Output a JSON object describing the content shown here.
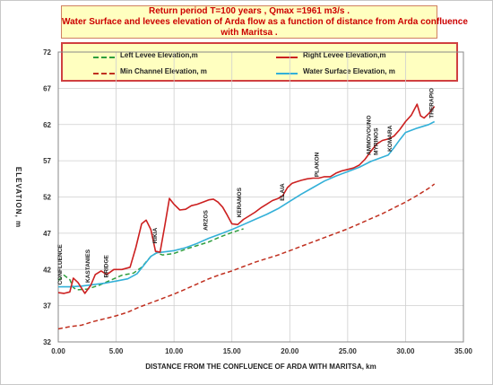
{
  "title_lines": [
    "Return period  T=100 years , Qmax =1961    m3/s .",
    "Water  Surface and levees  elevation  of  Arda flow  as a function of  distance  from  Arda confluence",
    "with Maritsa   ."
  ],
  "colors": {
    "left_levee": "#2e9e3e",
    "right_levee": "#cc2020",
    "min_channel": "#c03020",
    "water": "#33b0d8",
    "title_text": "#cc0000"
  },
  "chart_data": {
    "type": "line",
    "title": "Return period  T=100 years , Qmax =1961    m3/s . Water  Surface and levees  elevation  of  Arda flow  as a function of  distance  from  Arda confluence with Maritsa   .",
    "xlabel": "DISTANCE  FROM THE CONFLUENCE OF ARDA WITH MARITSA, km",
    "ylabel": "ELEVATION, m",
    "xlim": [
      0,
      35
    ],
    "ylim": [
      32,
      72
    ],
    "x_ticks": [
      "0.00",
      "5.00",
      "10.00",
      "15.00",
      "20.00",
      "25.00",
      "30.00",
      "35.00"
    ],
    "y_ticks": [
      "32",
      "37",
      "42",
      "47",
      "52",
      "57",
      "62",
      "67",
      "72"
    ],
    "grid": true,
    "legend_placement": "top",
    "series": [
      {
        "name": "Left Levee  Elevation,m",
        "style": "dashed",
        "color": "#2e9e3e",
        "x": [
          0.0,
          0.5,
          1.0,
          1.3,
          1.6,
          2.5,
          3.5,
          4.5,
          5.5,
          6.5,
          7.2,
          8.0,
          8.5,
          9.0,
          10.0,
          11.0,
          12.0,
          13.0,
          14.0,
          15.0,
          16.0
        ],
        "y": [
          40.5,
          41.2,
          40.6,
          39.5,
          39.2,
          39.3,
          39.8,
          40.5,
          41.2,
          41.5,
          42.3,
          43.8,
          44.3,
          44.0,
          44.2,
          44.8,
          45.3,
          45.8,
          46.5,
          47.1,
          47.6
        ]
      },
      {
        "name": "Right  Levee  Elevation,m",
        "style": "solid",
        "color": "#cc2020",
        "x": [
          0.0,
          0.5,
          1.0,
          1.3,
          1.7,
          2.3,
          2.8,
          3.2,
          3.7,
          4.2,
          4.8,
          5.5,
          6.2,
          6.7,
          7.2,
          7.6,
          8.0,
          8.4,
          8.8,
          9.2,
          9.6,
          10.0,
          10.5,
          11.0,
          11.5,
          12.0,
          12.5,
          13.0,
          13.4,
          13.8,
          14.2,
          14.6,
          15.0,
          15.5,
          16.0,
          16.5,
          17.0,
          17.5,
          18.0,
          18.5,
          19.0,
          19.4,
          19.8,
          20.2,
          20.6,
          21.0,
          21.5,
          22.0,
          22.5,
          23.0,
          23.5,
          24.0,
          24.5,
          25.0,
          25.5,
          26.0,
          26.5,
          27.0,
          27.5,
          28.0,
          28.5,
          29.0,
          29.5,
          30.0,
          30.5,
          31.0,
          31.3,
          31.6,
          32.0,
          32.5
        ],
        "y": [
          38.8,
          38.7,
          38.9,
          40.8,
          40.2,
          38.7,
          39.8,
          41.3,
          41.8,
          41.3,
          42.0,
          42.0,
          42.3,
          45.0,
          48.3,
          48.8,
          47.5,
          44.5,
          44.4,
          48.0,
          51.8,
          51.0,
          50.2,
          50.3,
          50.8,
          51.0,
          51.3,
          51.6,
          51.7,
          51.3,
          50.6,
          49.5,
          48.3,
          48.2,
          48.9,
          49.4,
          49.9,
          50.5,
          51.0,
          51.5,
          51.8,
          52.2,
          53.3,
          53.9,
          54.1,
          54.3,
          54.5,
          54.6,
          54.6,
          54.8,
          54.8,
          55.3,
          55.6,
          55.8,
          56.0,
          56.4,
          57.2,
          58.3,
          59.3,
          59.8,
          60.0,
          60.4,
          61.3,
          62.4,
          63.3,
          64.8,
          63.2,
          62.9,
          63.5,
          64.5
        ]
      },
      {
        "name": "Min Channel  Elevation, m",
        "style": "dashed",
        "color": "#c03020",
        "x": [
          0.0,
          1.0,
          2.0,
          3.0,
          4.0,
          5.0,
          6.0,
          7.0,
          8.0,
          9.0,
          10.0,
          11.0,
          12.0,
          13.0,
          14.0,
          15.0,
          16.0,
          17.0,
          18.0,
          19.0,
          20.0,
          21.0,
          22.0,
          23.0,
          24.0,
          25.0,
          26.0,
          27.0,
          28.0,
          29.0,
          30.0,
          31.0,
          32.0,
          32.5
        ],
        "y": [
          33.8,
          34.1,
          34.3,
          34.8,
          35.2,
          35.6,
          36.1,
          36.8,
          37.4,
          38.0,
          38.6,
          39.3,
          40.0,
          40.7,
          41.3,
          41.8,
          42.4,
          43.0,
          43.5,
          44.0,
          44.6,
          45.2,
          45.8,
          46.4,
          47.0,
          47.6,
          48.3,
          49.0,
          49.7,
          50.5,
          51.3,
          52.2,
          53.2,
          53.8
        ]
      },
      {
        "name": "Water  Surface  Elevation, m",
        "style": "solid",
        "color": "#33b0d8",
        "x": [
          0.0,
          1.0,
          2.0,
          3.0,
          4.0,
          5.0,
          6.0,
          6.8,
          7.5,
          8.0,
          8.5,
          9.0,
          10.0,
          11.0,
          12.0,
          13.0,
          14.0,
          15.0,
          16.0,
          17.0,
          18.0,
          19.0,
          20.0,
          21.0,
          22.0,
          23.0,
          24.0,
          25.0,
          26.0,
          27.0,
          28.0,
          28.5,
          29.0,
          29.5,
          30.0,
          31.0,
          32.0,
          32.5
        ],
        "y": [
          39.6,
          39.6,
          39.7,
          39.9,
          40.1,
          40.4,
          40.7,
          41.4,
          42.8,
          43.8,
          44.3,
          44.4,
          44.6,
          45.0,
          45.6,
          46.3,
          46.9,
          47.5,
          48.2,
          48.9,
          49.6,
          50.4,
          51.4,
          52.4,
          53.3,
          54.2,
          54.9,
          55.5,
          56.1,
          56.9,
          57.5,
          57.8,
          58.8,
          59.9,
          60.9,
          61.5,
          62.0,
          62.4
        ]
      }
    ],
    "annotations": [
      {
        "text": "CONFLUENCE",
        "x": 0.3,
        "y": 39.5
      },
      {
        "text": "KASTANIES",
        "x": 2.7,
        "y": 39.8
      },
      {
        "text": "BRIDGE",
        "x": 4.3,
        "y": 40.5
      },
      {
        "text": "RIKIA",
        "x": 8.5,
        "y": 45.2
      },
      {
        "text": "ARZOS",
        "x": 12.9,
        "y": 47.0
      },
      {
        "text": "KERAMOS",
        "x": 15.8,
        "y": 48.8
      },
      {
        "text": "ELAIA",
        "x": 19.5,
        "y": 51.1
      },
      {
        "text": "PLAKON",
        "x": 22.5,
        "y": 54.4
      },
      {
        "text": "AMMOVOUNO",
        "x": 27.0,
        "y": 57.4
      },
      {
        "text": "MYRINOS",
        "x": 27.6,
        "y": 57.4
      },
      {
        "text": "KOMARA",
        "x": 28.8,
        "y": 57.9
      },
      {
        "text": "THERAPIO",
        "x": 32.4,
        "y": 62.5
      }
    ]
  }
}
